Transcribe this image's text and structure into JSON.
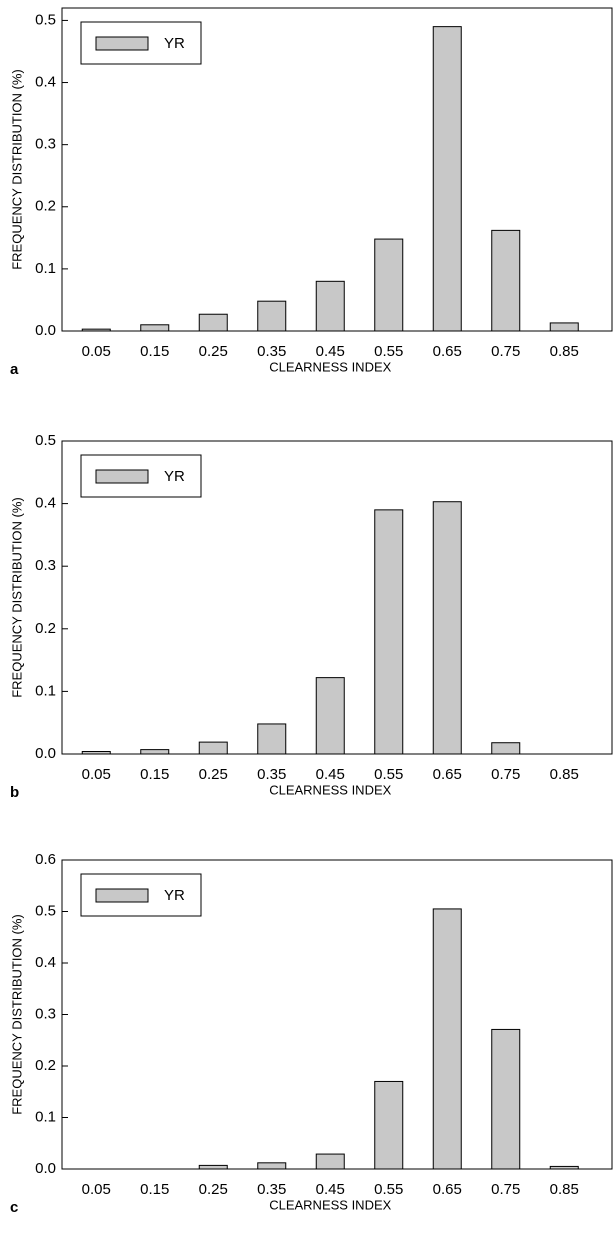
{
  "chart_data": [
    {
      "type": "bar",
      "panel": "a",
      "xlabel": "CLEARNESS INDEX",
      "ylabel": "FREQUENCY DISTRIBUTION (%)",
      "categories": [
        "0.05",
        "0.15",
        "0.25",
        "0.35",
        "0.45",
        "0.55",
        "0.65",
        "0.75",
        "0.85"
      ],
      "series": [
        {
          "name": "YR",
          "color": "#c8c8c8",
          "values": [
            0.003,
            0.01,
            0.027,
            0.048,
            0.08,
            0.148,
            0.49,
            0.162,
            0.013
          ]
        }
      ],
      "ylim": [
        0,
        0.52
      ],
      "yticks": [
        {
          "value": 0,
          "label": "0.0"
        },
        0.1,
        0.2,
        0.3,
        0.4,
        0.5
      ],
      "legend": "upper left"
    },
    {
      "type": "bar",
      "panel": "b",
      "xlabel": "CLEARNESS INDEX",
      "ylabel": "FREQUENCY DISTRIBUTION (%)",
      "categories": [
        "0.05",
        "0.15",
        "0.25",
        "0.35",
        "0.45",
        "0.55",
        "0.65",
        "0.75",
        "0.85"
      ],
      "series": [
        {
          "name": "YR",
          "color": "#c8c8c8",
          "values": [
            0.004,
            0.007,
            0.019,
            0.048,
            0.122,
            0.39,
            0.403,
            0.018,
            0
          ]
        }
      ],
      "ylim": [
        0,
        0.5
      ],
      "yticks": [
        {
          "value": 0,
          "label": "0.0"
        },
        0.1,
        0.2,
        0.3,
        0.4,
        0.5
      ],
      "legend": "upper left"
    },
    {
      "type": "bar",
      "panel": "c",
      "xlabel": "CLEARNESS INDEX",
      "ylabel": "FREQUENCY DISTRIBUTION (%)",
      "categories": [
        "0.05",
        "0.15",
        "0.25",
        "0.35",
        "0.45",
        "0.55",
        "0.65",
        "0.75",
        "0.85"
      ],
      "series": [
        {
          "name": "YR",
          "color": "#c8c8c8",
          "values": [
            0,
            0,
            0.007,
            0.012,
            0.029,
            0.17,
            0.505,
            0.271,
            0.005
          ]
        }
      ],
      "ylim": [
        0,
        0.6
      ],
      "yticks": [
        {
          "value": 0,
          "label": "0.0"
        },
        0.1,
        0.2,
        0.3,
        0.4,
        0.5,
        0.6
      ],
      "legend": "upper left"
    }
  ]
}
